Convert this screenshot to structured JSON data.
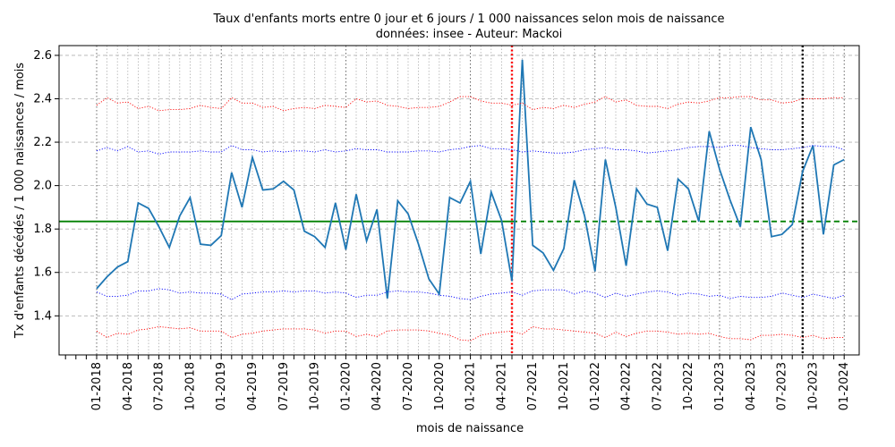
{
  "chart_data": {
    "type": "line",
    "title": "Taux d'enfants morts entre 0 jour et 6 jours / 1 000 naissances selon mois de naissance",
    "subtitle": "données: insee - Auteur: Mackoi",
    "xlabel": "mois de naissance",
    "ylabel": "Tx d'enfants décédés / 1 000 naissances / mois",
    "ylim": [
      1.22,
      2.645
    ],
    "grid": true,
    "x_tick_labels": [
      "01-2018",
      "04-2018",
      "07-2018",
      "10-2018",
      "01-2019",
      "04-2019",
      "07-2019",
      "10-2019",
      "01-2020",
      "04-2020",
      "07-2020",
      "10-2020",
      "01-2021",
      "04-2021",
      "07-2021",
      "10-2021",
      "01-2022",
      "04-2022",
      "07-2022",
      "07-2022",
      "10-2022",
      "01-2023",
      "04-2023",
      "07-2023",
      "10-2023",
      "01-2024"
    ],
    "y_ticks": [
      1.4,
      1.6,
      1.8,
      2.0,
      2.2,
      2.4,
      2.6
    ],
    "series": [
      {
        "color": "#1f77b4",
        "values": [
          1.525,
          1.58,
          1.625,
          1.65,
          1.92,
          1.895,
          1.81,
          1.715,
          1.86,
          1.945,
          1.73,
          1.725,
          1.77,
          2.06,
          1.9,
          2.13,
          1.98,
          1.985,
          2.02,
          1.98,
          1.79,
          1.765,
          1.715,
          1.92,
          1.705,
          1.96,
          1.745,
          1.89,
          1.48,
          1.93,
          1.87,
          1.73,
          1.57,
          1.5,
          1.945,
          1.92,
          2.02,
          1.685,
          1.97,
          1.84,
          1.56,
          2.58,
          1.725,
          1.69,
          1.61,
          1.71,
          2.025,
          1.86,
          1.605,
          2.12,
          1.9,
          1.63,
          1.985,
          1.915,
          1.9,
          1.7,
          2.03,
          1.985,
          1.835,
          2.25,
          2.075,
          1.935,
          1.81,
          2.27,
          2.12,
          1.765,
          1.775,
          1.82,
          2.065,
          2.185,
          1.775,
          2.095,
          2.12
        ]
      },
      {
        "color": "#0000ff",
        "style": "dotted",
        "values": [
          2.16,
          2.175,
          2.16,
          2.18,
          2.155,
          2.16,
          2.145,
          2.155,
          2.155,
          2.155,
          2.16,
          2.155,
          2.155,
          2.185,
          2.165,
          2.165,
          2.155,
          2.16,
          2.155,
          2.16,
          2.16,
          2.155,
          2.165,
          2.155,
          2.16,
          2.17,
          2.165,
          2.165,
          2.155,
          2.155,
          2.155,
          2.16,
          2.16,
          2.155,
          2.165,
          2.17,
          2.18,
          2.185,
          2.17,
          2.17,
          2.165,
          2.155,
          2.16,
          2.155,
          2.15,
          2.15,
          2.155,
          2.165,
          2.17,
          2.175,
          2.165,
          2.165,
          2.16,
          2.15,
          2.155,
          2.16,
          2.165,
          2.175,
          2.18,
          2.18,
          2.175,
          2.185,
          2.185,
          2.175,
          2.17,
          2.165,
          2.165,
          2.17,
          2.175,
          2.185,
          2.18,
          2.18,
          2.165
        ]
      },
      {
        "color": "#0000ff",
        "style": "dotted",
        "values": [
          1.51,
          1.49,
          1.49,
          1.495,
          1.515,
          1.515,
          1.525,
          1.52,
          1.505,
          1.51,
          1.505,
          1.505,
          1.5,
          1.475,
          1.5,
          1.505,
          1.51,
          1.51,
          1.515,
          1.51,
          1.515,
          1.515,
          1.505,
          1.51,
          1.505,
          1.485,
          1.495,
          1.495,
          1.51,
          1.515,
          1.51,
          1.51,
          1.505,
          1.495,
          1.49,
          1.48,
          1.475,
          1.49,
          1.5,
          1.505,
          1.51,
          1.495,
          1.515,
          1.52,
          1.52,
          1.52,
          1.5,
          1.515,
          1.505,
          1.485,
          1.505,
          1.49,
          1.5,
          1.51,
          1.515,
          1.51,
          1.495,
          1.505,
          1.5,
          1.49,
          1.495,
          1.48,
          1.49,
          1.485,
          1.485,
          1.49,
          1.505,
          1.495,
          1.485,
          1.5,
          1.49,
          1.48,
          1.495
        ]
      },
      {
        "color": "#ff0000",
        "style": "dotted",
        "values": [
          2.37,
          2.405,
          2.38,
          2.385,
          2.355,
          2.365,
          2.345,
          2.35,
          2.35,
          2.355,
          2.37,
          2.36,
          2.355,
          2.405,
          2.38,
          2.38,
          2.36,
          2.365,
          2.345,
          2.355,
          2.36,
          2.355,
          2.37,
          2.365,
          2.36,
          2.4,
          2.385,
          2.39,
          2.37,
          2.365,
          2.355,
          2.36,
          2.36,
          2.365,
          2.385,
          2.41,
          2.41,
          2.39,
          2.38,
          2.38,
          2.37,
          2.38,
          2.35,
          2.36,
          2.355,
          2.37,
          2.36,
          2.375,
          2.385,
          2.41,
          2.385,
          2.395,
          2.37,
          2.365,
          2.365,
          2.355,
          2.375,
          2.385,
          2.38,
          2.39,
          2.405,
          2.405,
          2.41,
          2.41,
          2.395,
          2.395,
          2.38,
          2.385,
          2.4,
          2.4,
          2.4,
          2.405,
          2.405
        ]
      },
      {
        "color": "#ff0000",
        "style": "dotted",
        "values": [
          1.33,
          1.3,
          1.32,
          1.315,
          1.335,
          1.34,
          1.35,
          1.345,
          1.34,
          1.345,
          1.33,
          1.33,
          1.33,
          1.3,
          1.315,
          1.32,
          1.33,
          1.335,
          1.34,
          1.34,
          1.34,
          1.335,
          1.32,
          1.33,
          1.33,
          1.305,
          1.315,
          1.305,
          1.33,
          1.335,
          1.335,
          1.335,
          1.33,
          1.32,
          1.31,
          1.29,
          1.285,
          1.31,
          1.32,
          1.325,
          1.33,
          1.315,
          1.35,
          1.34,
          1.34,
          1.335,
          1.33,
          1.325,
          1.32,
          1.3,
          1.325,
          1.305,
          1.32,
          1.33,
          1.33,
          1.325,
          1.315,
          1.32,
          1.315,
          1.32,
          1.305,
          1.295,
          1.295,
          1.29,
          1.31,
          1.31,
          1.315,
          1.31,
          1.3,
          1.31,
          1.295,
          1.3,
          1.3
        ]
      }
    ],
    "reference_lines": {
      "horizontal": {
        "y": 1.835,
        "color": "#008000",
        "solid_until_index": 40
      },
      "vertical": [
        {
          "x_index": 40,
          "color": "#ff0000",
          "style": "dotted"
        },
        {
          "x_index": 68,
          "color": "#000000",
          "style": "dotted"
        }
      ]
    },
    "colors": {
      "main": "#1f77b4",
      "band_inner": "#0000ff",
      "band_outer": "#ff0000",
      "average": "#008000"
    }
  }
}
